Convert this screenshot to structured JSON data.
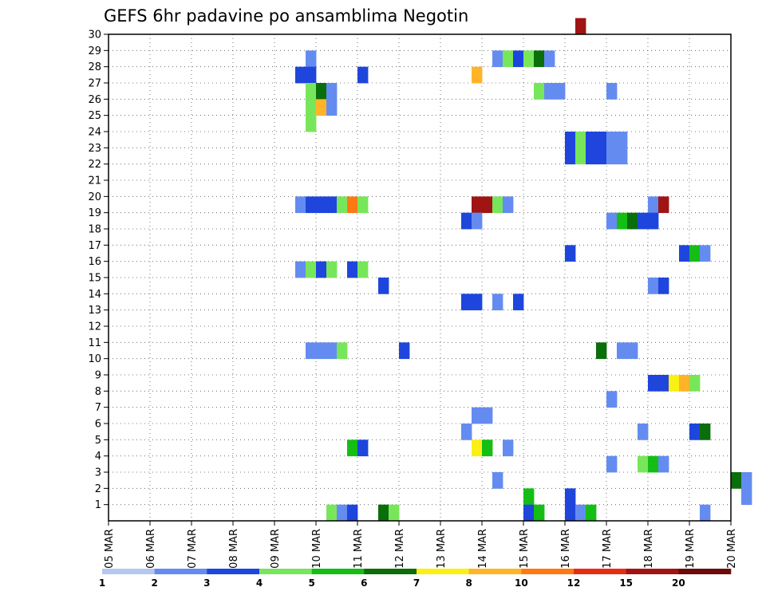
{
  "chart_data": {
    "type": "heatmap",
    "title": "GEFS 6hr padavine po ansamblima Negotin",
    "xlabel": "",
    "ylabel": "",
    "x_range_days": [
      5,
      20
    ],
    "x_tick_labels": [
      "05 MAR",
      "06 MAR",
      "07 MAR",
      "08 MAR",
      "09 MAR",
      "10 MAR",
      "11 MAR",
      "12 MAR",
      "13 MAR",
      "14 MAR",
      "15 MAR",
      "16 MAR",
      "17 MAR",
      "18 MAR",
      "19 MAR",
      "20 MAR"
    ],
    "y_range": [
      0,
      30
    ],
    "y_tick_labels": [
      "1",
      "2",
      "3",
      "4",
      "5",
      "6",
      "7",
      "8",
      "9",
      "10",
      "11",
      "12",
      "13",
      "14",
      "15",
      "16",
      "17",
      "18",
      "19",
      "20",
      "21",
      "22",
      "23",
      "24",
      "25",
      "26",
      "27",
      "28",
      "29",
      "30"
    ],
    "grid": true,
    "colorbar": {
      "labels": [
        "1",
        "2",
        "3",
        "4",
        "5",
        "6",
        "7",
        "8",
        "10",
        "12",
        "15",
        "20"
      ],
      "colors": [
        "#b4c8f0",
        "#648cf0",
        "#1e46dc",
        "#78e65a",
        "#14be14",
        "#0a6e0a",
        "#faf014",
        "#ffb428",
        "#ff7814",
        "#e62d14",
        "#a01414",
        "#6e0a0a"
      ]
    },
    "cells": [
      [
        16.25,
        30,
        10
      ],
      [
        9.75,
        28,
        1
      ],
      [
        14.25,
        28,
        1
      ],
      [
        14.5,
        28,
        3
      ],
      [
        14.75,
        28,
        2
      ],
      [
        15.0,
        28,
        3
      ],
      [
        15.25,
        28,
        5
      ],
      [
        15.5,
        28,
        1
      ],
      [
        9.5,
        27,
        2
      ],
      [
        9.75,
        27,
        2
      ],
      [
        11.0,
        27,
        2
      ],
      [
        13.75,
        27,
        7
      ],
      [
        9.75,
        26,
        3
      ],
      [
        10.0,
        26,
        5
      ],
      [
        10.25,
        26,
        1
      ],
      [
        15.25,
        26,
        3
      ],
      [
        15.5,
        26,
        1
      ],
      [
        15.75,
        26,
        1
      ],
      [
        17.0,
        26,
        1
      ],
      [
        9.75,
        25,
        3
      ],
      [
        10.0,
        25,
        7
      ],
      [
        10.25,
        25,
        1
      ],
      [
        9.75,
        24,
        3
      ],
      [
        16.0,
        23,
        2
      ],
      [
        16.25,
        23,
        3
      ],
      [
        16.5,
        23,
        2
      ],
      [
        16.75,
        23,
        2
      ],
      [
        17.0,
        23,
        1
      ],
      [
        17.25,
        23,
        1
      ],
      [
        16.0,
        22,
        2
      ],
      [
        16.25,
        22,
        3
      ],
      [
        16.5,
        22,
        2
      ],
      [
        16.75,
        22,
        2
      ],
      [
        17.0,
        22,
        1
      ],
      [
        17.25,
        22,
        1
      ],
      [
        9.5,
        19,
        1
      ],
      [
        9.75,
        19,
        2
      ],
      [
        10.0,
        19,
        2
      ],
      [
        10.25,
        19,
        2
      ],
      [
        10.5,
        19,
        3
      ],
      [
        10.75,
        19,
        8
      ],
      [
        11.0,
        19,
        3
      ],
      [
        13.75,
        19,
        10
      ],
      [
        14.0,
        19,
        10
      ],
      [
        14.25,
        19,
        3
      ],
      [
        14.5,
        19,
        1
      ],
      [
        18.0,
        19,
        1
      ],
      [
        18.25,
        19,
        10
      ],
      [
        13.5,
        18,
        2
      ],
      [
        13.75,
        18,
        1
      ],
      [
        17.0,
        18,
        1
      ],
      [
        17.25,
        18,
        4
      ],
      [
        17.5,
        18,
        5
      ],
      [
        17.75,
        18,
        2
      ],
      [
        18.0,
        18,
        2
      ],
      [
        16.0,
        16,
        2
      ],
      [
        18.75,
        16,
        2
      ],
      [
        19.0,
        16,
        4
      ],
      [
        19.25,
        16,
        1
      ],
      [
        9.5,
        15,
        1
      ],
      [
        9.75,
        15,
        3
      ],
      [
        10.0,
        15,
        2
      ],
      [
        10.25,
        15,
        3
      ],
      [
        10.75,
        15,
        2
      ],
      [
        11.0,
        15,
        3
      ],
      [
        11.5,
        14,
        2
      ],
      [
        18.0,
        14,
        1
      ],
      [
        18.25,
        14,
        2
      ],
      [
        13.5,
        13,
        2
      ],
      [
        13.75,
        13,
        2
      ],
      [
        14.25,
        13,
        1
      ],
      [
        14.75,
        13,
        2
      ],
      [
        9.75,
        10,
        1
      ],
      [
        10.0,
        10,
        1
      ],
      [
        10.25,
        10,
        1
      ],
      [
        10.5,
        10,
        3
      ],
      [
        12.0,
        10,
        2
      ],
      [
        16.75,
        10,
        5
      ],
      [
        17.25,
        10,
        1
      ],
      [
        17.5,
        10,
        1
      ],
      [
        18.0,
        8,
        2
      ],
      [
        18.25,
        8,
        2
      ],
      [
        18.5,
        8,
        6
      ],
      [
        18.75,
        8,
        7
      ],
      [
        19.0,
        8,
        3
      ],
      [
        17.0,
        7,
        1
      ],
      [
        13.75,
        6,
        1
      ],
      [
        14.0,
        6,
        1
      ],
      [
        13.5,
        5,
        1
      ],
      [
        17.75,
        5,
        1
      ],
      [
        19.0,
        5,
        2
      ],
      [
        19.25,
        5,
        5
      ],
      [
        10.75,
        4,
        4
      ],
      [
        11.0,
        4,
        2
      ],
      [
        13.75,
        4,
        6
      ],
      [
        14.0,
        4,
        4
      ],
      [
        14.5,
        4,
        1
      ],
      [
        17.0,
        3,
        1
      ],
      [
        17.75,
        3,
        3
      ],
      [
        18.0,
        3,
        4
      ],
      [
        18.25,
        3,
        1
      ],
      [
        14.25,
        2,
        1
      ],
      [
        20.0,
        2,
        5
      ],
      [
        20.25,
        2,
        1
      ],
      [
        15.0,
        1,
        4
      ],
      [
        16.0,
        1,
        2
      ],
      [
        20.25,
        1,
        1
      ],
      [
        10.25,
        0,
        3
      ],
      [
        10.5,
        0,
        1
      ],
      [
        10.75,
        0,
        2
      ],
      [
        11.5,
        0,
        5
      ],
      [
        11.75,
        0,
        3
      ],
      [
        15.0,
        0,
        2
      ],
      [
        15.25,
        0,
        4
      ],
      [
        16.0,
        0,
        2
      ],
      [
        16.25,
        0,
        1
      ],
      [
        16.5,
        0,
        4
      ],
      [
        19.25,
        0,
        1
      ]
    ]
  }
}
